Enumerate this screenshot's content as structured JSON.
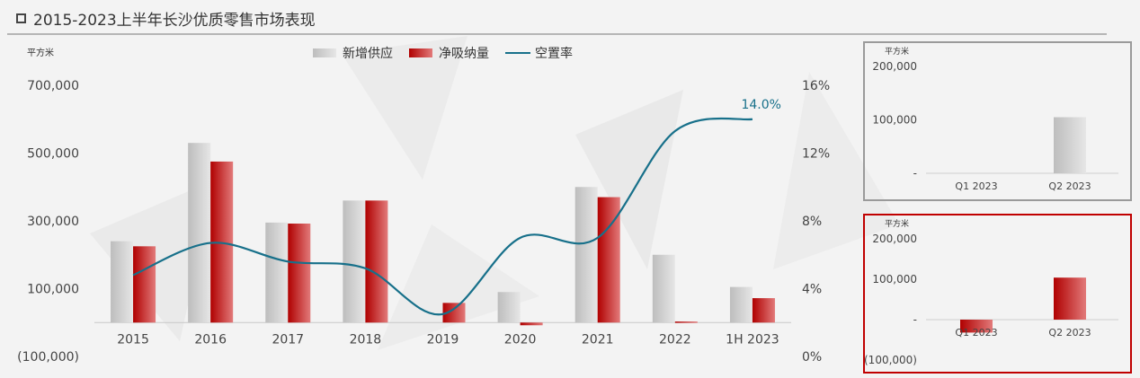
{
  "title": "2015-2023上半年长沙优质零售市场表现",
  "chart_data": [
    {
      "type": "bar",
      "y_unit_label": "平方米",
      "categories": [
        "2015",
        "2016",
        "2017",
        "2018",
        "2019",
        "2020",
        "2021",
        "2022",
        "1H 2023"
      ],
      "series": [
        {
          "name": "新增供应",
          "kind": "bar",
          "color": "#c9c9c9",
          "values": [
            240000,
            530000,
            295000,
            360000,
            0,
            90000,
            400000,
            200000,
            105000
          ]
        },
        {
          "name": "净吸纳量",
          "kind": "bar",
          "color": "#c00000",
          "values": [
            225000,
            475000,
            292000,
            360000,
            58000,
            -8000,
            370000,
            3000,
            72000
          ]
        },
        {
          "name": "空置率",
          "kind": "line",
          "color": "#17708a",
          "axis": "right",
          "values": [
            4.8,
            6.7,
            5.6,
            5.2,
            2.5,
            7.0,
            7.0,
            13.3,
            14.0
          ]
        }
      ],
      "ylim": [
        -100000,
        700000
      ],
      "y_ticks": [
        "(100,000)",
        "100,000",
        "300,000",
        "500,000",
        "700,000"
      ],
      "y_tick_values": [
        -100000,
        100000,
        300000,
        500000,
        700000
      ],
      "y2lim": [
        0,
        16
      ],
      "y2_ticks": [
        "0%",
        "4%",
        "8%",
        "12%",
        "16%"
      ],
      "y2_tick_values": [
        0,
        4,
        8,
        12,
        16
      ],
      "annotation": "14.0%",
      "legend": "top-center"
    },
    {
      "type": "bar",
      "y_unit_label": "平方米",
      "categories": [
        "Q1 2023",
        "Q2 2023"
      ],
      "series": [
        {
          "name": "新增供应",
          "values": [
            0,
            105000
          ]
        }
      ],
      "ylim": [
        0,
        200000
      ],
      "y_ticks": [
        "-",
        "100,000",
        "200,000"
      ],
      "y_tick_values": [
        0,
        100000,
        200000
      ]
    },
    {
      "type": "bar",
      "y_unit_label": "平方米",
      "categories": [
        "Q1 2023",
        "Q2 2023"
      ],
      "series": [
        {
          "name": "净吸纳量",
          "values": [
            -32000,
            104000
          ]
        }
      ],
      "ylim": [
        -100000,
        200000
      ],
      "y_ticks": [
        "(100,000)",
        "-",
        "100,000",
        "200,000"
      ],
      "y_tick_values": [
        -100000,
        0,
        100000,
        200000
      ]
    }
  ]
}
